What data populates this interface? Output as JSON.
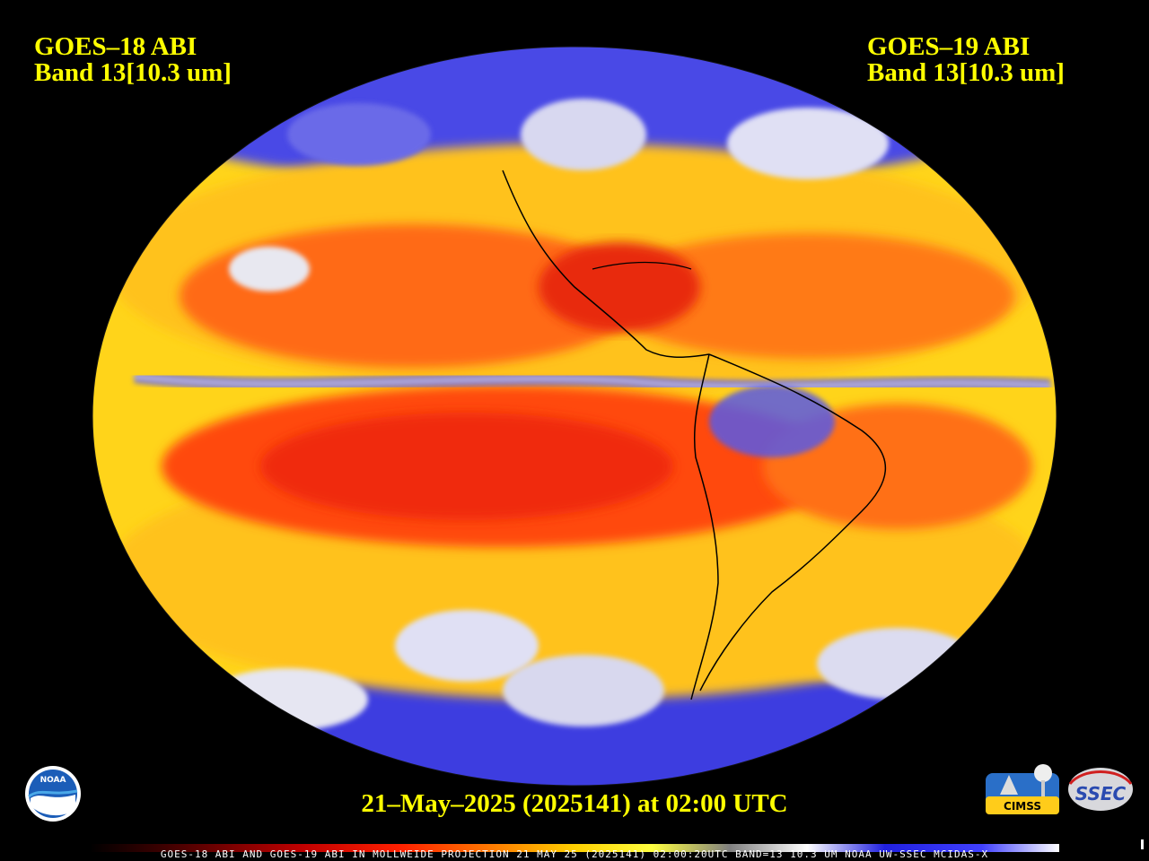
{
  "header": {
    "left_line1": "GOES–18 ABI",
    "left_line2": "Band 13[10.3 um]",
    "right_line1": "GOES–19 ABI",
    "right_line2": "Band 13[10.3 um]"
  },
  "date_stamp": "21–May–2025 (2025141) at 02:00 UTC",
  "footer_caption": "GOES-18 ABI AND GOES-19 ABI IN MOLLWEIDE PROJECTION 21 MAY 25 (2025141) 02:00:20UTC BAND=13 10.3 UM NOAA UW-SSEC MCIDAS-X",
  "logos": {
    "noaa": "NOAA",
    "cimss": "CIMSS",
    "ssec": "SSEC"
  },
  "colors": {
    "text": "#ffff00",
    "background": "#000000",
    "warm": "#e8240e",
    "mid": "#ffd21a",
    "cold": "#2424e6"
  }
}
